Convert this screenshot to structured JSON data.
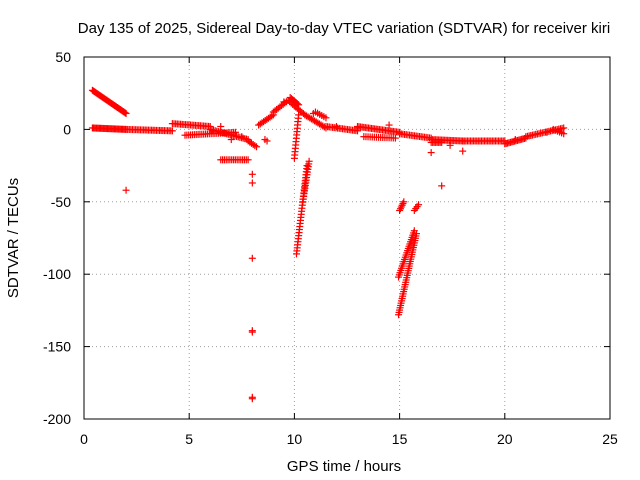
{
  "chart_data": {
    "type": "scatter",
    "title": "Day 135 of 2025, Sidereal Day-to-day VTEC variation (SDTVAR) for receiver kiri",
    "xlabel": "GPS time / hours",
    "ylabel": "SDTVAR / TECUs",
    "xlim": [
      0,
      25
    ],
    "ylim": [
      -200,
      50
    ],
    "x_ticks": [
      0,
      5,
      10,
      15,
      20,
      25
    ],
    "y_ticks": [
      50,
      0,
      -50,
      -100,
      -150,
      -200
    ],
    "grid": true,
    "marker": "plus",
    "color": "#ff0000",
    "series": [
      {
        "name": "SDTVAR",
        "segments": [
          {
            "x0": 0.4,
            "x1": 2.0,
            "y0": 27,
            "y1": 11,
            "n": 36
          },
          {
            "x0": 0.4,
            "x1": 2.0,
            "y0": 1,
            "y1": 0,
            "n": 30
          },
          {
            "x0": 2.0,
            "x1": 4.2,
            "y0": 0,
            "y1": -1,
            "n": 30
          },
          {
            "x0": 4.2,
            "x1": 6.0,
            "y0": 4,
            "y1": 2,
            "n": 24
          },
          {
            "x0": 4.8,
            "x1": 7.2,
            "y0": -4,
            "y1": -2,
            "n": 28
          },
          {
            "x0": 6.0,
            "x1": 7.8,
            "y0": 0,
            "y1": -7,
            "n": 24
          },
          {
            "x0": 6.5,
            "x1": 7.8,
            "y0": -21,
            "y1": -21,
            "n": 16
          },
          {
            "x0": 7.8,
            "x1": 8.2,
            "y0": -8,
            "y1": -12,
            "n": 6
          },
          {
            "x0": 8.3,
            "x1": 9.0,
            "y0": 3,
            "y1": 10,
            "n": 10
          },
          {
            "x0": 9.0,
            "x1": 9.7,
            "y0": 12,
            "y1": 20,
            "n": 10
          },
          {
            "x0": 9.7,
            "x1": 10.5,
            "y0": 20,
            "y1": 10,
            "n": 12
          },
          {
            "x0": 9.8,
            "x1": 10.2,
            "y0": 22,
            "y1": 17,
            "n": 8
          },
          {
            "x0": 10.0,
            "x1": 10.2,
            "y0": -20,
            "y1": 10,
            "n": 14
          },
          {
            "x0": 10.1,
            "x1": 10.6,
            "y0": -86,
            "y1": -25,
            "n": 30
          },
          {
            "x0": 10.4,
            "x1": 10.7,
            "y0": -50,
            "y1": -22,
            "n": 16
          },
          {
            "x0": 10.5,
            "x1": 11.5,
            "y0": 10,
            "y1": 1,
            "n": 14
          },
          {
            "x0": 11.0,
            "x1": 11.5,
            "y0": 12,
            "y1": 8,
            "n": 6
          },
          {
            "x0": 11.5,
            "x1": 13.0,
            "y0": 2,
            "y1": -1,
            "n": 20
          },
          {
            "x0": 13.0,
            "x1": 15.0,
            "y0": 2,
            "y1": -2,
            "n": 28
          },
          {
            "x0": 13.3,
            "x1": 14.8,
            "y0": -5,
            "y1": -6,
            "n": 16
          },
          {
            "x0": 15.0,
            "x1": 16.5,
            "y0": -3,
            "y1": -6,
            "n": 20
          },
          {
            "x0": 15.0,
            "x1": 15.2,
            "y0": -56,
            "y1": -50,
            "n": 6
          },
          {
            "x0": 15.7,
            "x1": 15.9,
            "y0": -56,
            "y1": -52,
            "n": 4
          },
          {
            "x0": 14.95,
            "x1": 15.8,
            "y0": -128,
            "y1": -72,
            "n": 36
          },
          {
            "x0": 14.95,
            "x1": 15.7,
            "y0": -102,
            "y1": -70,
            "n": 22
          },
          {
            "x0": 16.5,
            "x1": 18.0,
            "y0": -7,
            "y1": -8,
            "n": 22
          },
          {
            "x0": 16.5,
            "x1": 17.0,
            "y0": -9,
            "y1": -9,
            "n": 8
          },
          {
            "x0": 18.0,
            "x1": 20.0,
            "y0": -8,
            "y1": -8,
            "n": 28
          },
          {
            "x0": 20.0,
            "x1": 21.0,
            "y0": -10,
            "y1": -6,
            "n": 16
          },
          {
            "x0": 21.0,
            "x1": 22.8,
            "y0": -5,
            "y1": 1,
            "n": 24
          },
          {
            "x0": 22.3,
            "x1": 22.8,
            "y0": 0,
            "y1": -3,
            "n": 6
          }
        ],
        "points": [
          [
            2.0,
            -42
          ],
          [
            8.0,
            -37
          ],
          [
            8.0,
            -31
          ],
          [
            8.0,
            -89
          ],
          [
            8.0,
            -139
          ],
          [
            8.0,
            -140
          ],
          [
            8.0,
            -186
          ],
          [
            8.0,
            -185
          ],
          [
            8.7,
            -8
          ],
          [
            8.6,
            -7
          ],
          [
            6.5,
            2
          ],
          [
            16.5,
            -16
          ],
          [
            17.0,
            -39
          ],
          [
            18.0,
            -15
          ],
          [
            17.4,
            -11
          ],
          [
            7.0,
            -7
          ],
          [
            7.5,
            -5
          ],
          [
            9.5,
            19
          ],
          [
            10.9,
            11
          ],
          [
            12.0,
            2
          ],
          [
            13.0,
            1
          ],
          [
            14.5,
            3
          ],
          [
            20.5,
            -7
          ],
          [
            22.0,
            -2
          ]
        ]
      }
    ]
  }
}
